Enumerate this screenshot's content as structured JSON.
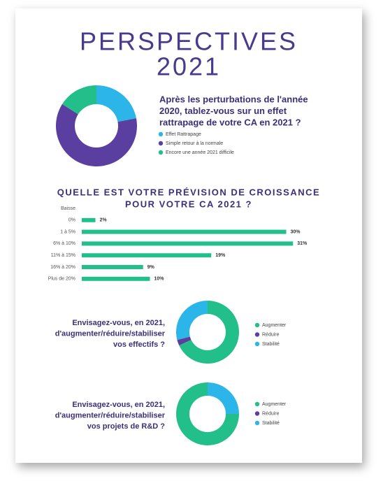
{
  "header": {
    "title": "PERSPECTIVES",
    "subtitle": "2021"
  },
  "chart_data": [
    {
      "type": "pie",
      "donut": true,
      "direction": "clockwise",
      "title": [
        "Après les perturbations de l'année",
        "2020, tablez-vous sur un effet",
        "rattrapage de votre CA en 2021 ?"
      ],
      "series": [
        {
          "name": "Effet Rattrapage",
          "color": "#2bb5e9",
          "values": [
            22
          ]
        },
        {
          "name": "Simple retour à la normale",
          "color": "#5b3fa0",
          "values": [
            62
          ]
        },
        {
          "name": "Encore une année 2021 difficile",
          "color": "#22bf8b",
          "values": [
            16
          ]
        }
      ]
    },
    {
      "type": "bar",
      "orientation": "horizontal",
      "color": "#22bf8b",
      "title": [
        "QUELLE EST VOTRE PRÉVISION DE CROISSANCE",
        "POUR VOTRE CA 2021 ?"
      ],
      "categories": [
        "Baisse",
        "0%",
        "1 à 5%",
        "6% à 10%",
        "11% à 15%",
        "16% à 20%",
        "Plus de 20%"
      ],
      "values": [
        null,
        2,
        30,
        31,
        19,
        9,
        10
      ],
      "value_labels": [
        null,
        "2%",
        "30%",
        "31%",
        "19%",
        "9%",
        "10%"
      ]
    },
    {
      "type": "pie",
      "donut": true,
      "direction": "clockwise",
      "title": [
        "Envisagez-vous, en 2021,",
        "d'augmenter/réduire/stabiliser",
        "vos effectifs ?"
      ],
      "series": [
        {
          "name": "Augmenter",
          "color": "#22bf8b",
          "values": [
            68
          ]
        },
        {
          "name": "Réduire",
          "color": "#5b3fa0",
          "values": [
            3
          ]
        },
        {
          "name": "Stabilité",
          "color": "#2bb5e9",
          "values": [
            29
          ]
        }
      ]
    },
    {
      "type": "pie",
      "donut": true,
      "direction": "counterclockwise",
      "title": [
        "Envisagez-vous, en 2021,",
        "d'augmenter/réduire/stabiliser",
        "vos projets de R&D ?"
      ],
      "series": [
        {
          "name": "Augmenter",
          "color": "#22bf8b",
          "values": [
            75
          ]
        },
        {
          "name": "Réduire",
          "color": "#5b3fa0",
          "values": [
            0
          ]
        },
        {
          "name": "Stabilité",
          "color": "#2bb5e9",
          "values": [
            25
          ]
        }
      ]
    }
  ]
}
